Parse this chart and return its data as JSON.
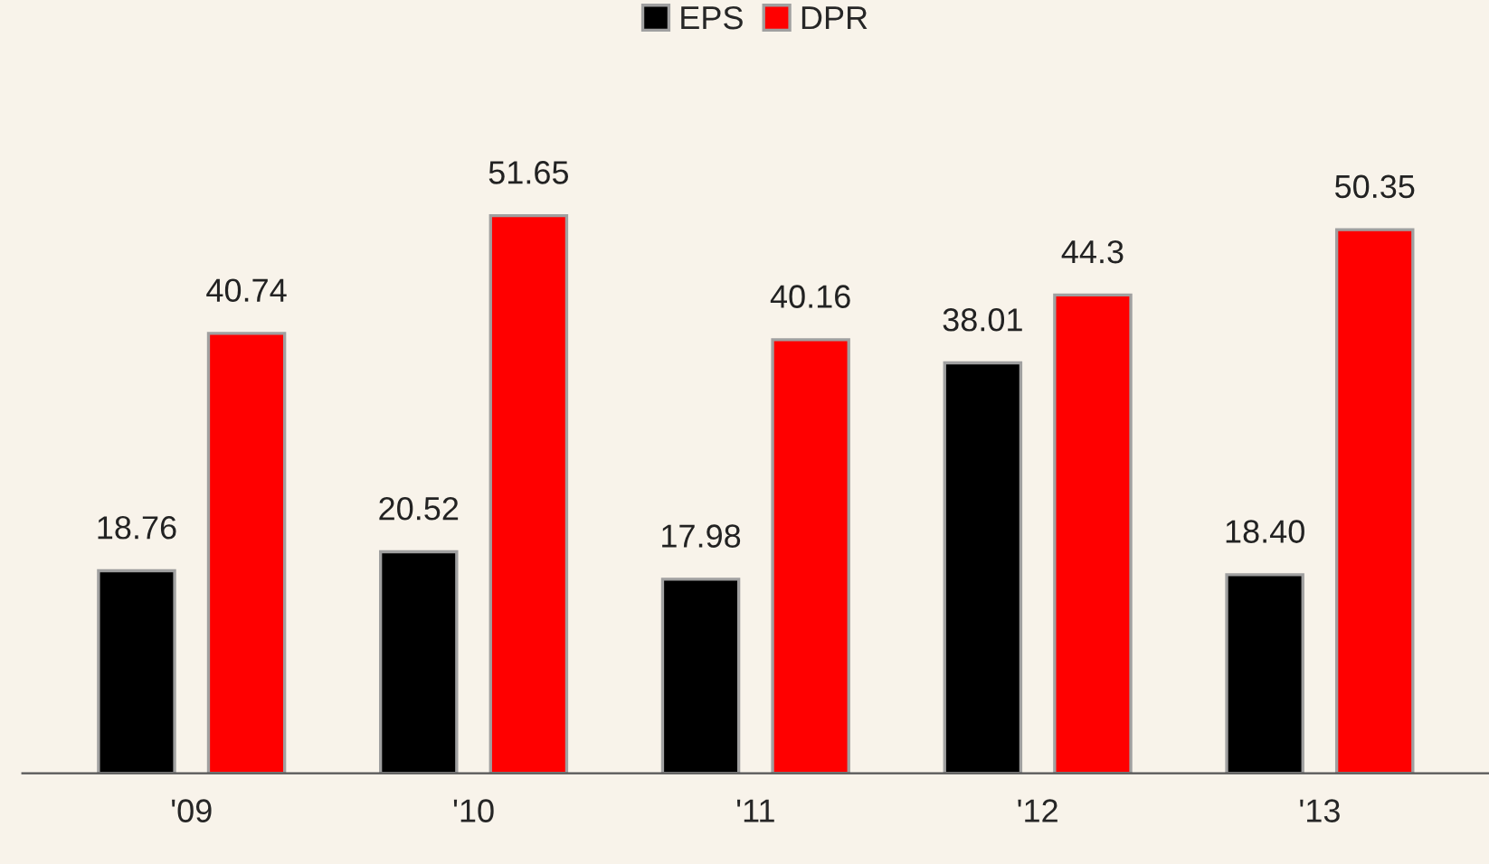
{
  "chart_data": {
    "type": "bar",
    "categories": [
      "'09",
      "'10",
      "'11",
      "'12",
      "'13"
    ],
    "series": [
      {
        "name": "EPS",
        "color": "#000000",
        "values": [
          18.76,
          20.52,
          17.98,
          38.01,
          18.4
        ],
        "value_labels": [
          "18.76",
          "20.52",
          "17.98",
          "38.01",
          "18.40"
        ]
      },
      {
        "name": "DPR",
        "color": "#ff0000",
        "values": [
          40.74,
          51.65,
          40.16,
          44.3,
          50.35
        ],
        "value_labels": [
          "40.74",
          "51.65",
          "40.16",
          "44.3",
          "50.35"
        ]
      }
    ],
    "legend": "top",
    "grid": false
  }
}
